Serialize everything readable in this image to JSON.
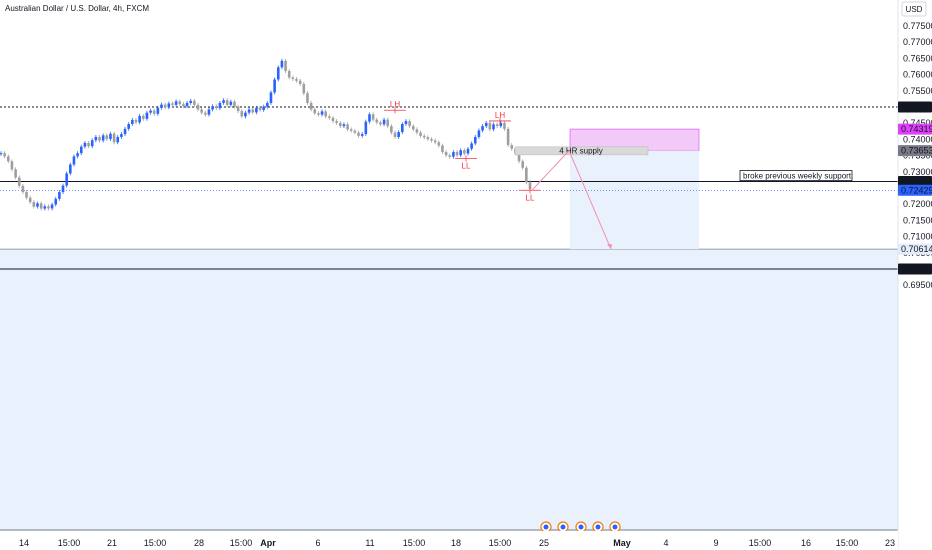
{
  "chart_data": {
    "type": "candlestick",
    "title": "Australian Dollar / U.S. Dollar, 4h, FXCM",
    "currency": "USD",
    "ylim": [
      0.694,
      0.779
    ],
    "y_ticks": [
      "0.77500",
      "0.77000",
      "0.76500",
      "0.76000",
      "0.75500",
      "0.75000",
      "0.74500",
      "0.74000",
      "0.73500",
      "0.73000",
      "0.72500",
      "0.72000",
      "0.71500",
      "0.71000",
      "0.70500",
      "0.70000",
      "0.69500"
    ],
    "x_ticks": [
      "14",
      "15:00",
      "21",
      "15:00",
      "28",
      "15:00",
      "Apr",
      "6",
      "11",
      "15:00",
      "18",
      "15:00",
      "25",
      "May",
      "4",
      "9",
      "15:00",
      "16",
      "15:00",
      "23"
    ],
    "bull_color": "#2962ff",
    "bear_color": "#9e9e9e",
    "path": [
      [
        0.7355,
        0.736
      ],
      [
        0.7345,
        0.735
      ],
      [
        0.733,
        0.7335
      ],
      [
        0.7305,
        0.731
      ],
      [
        0.728,
        0.7285
      ],
      [
        0.7255,
        0.7258
      ],
      [
        0.7235,
        0.724
      ],
      [
        0.7218,
        0.7222
      ],
      [
        0.7205,
        0.7208
      ],
      [
        0.719,
        0.7195
      ],
      [
        0.72,
        0.7205
      ],
      [
        0.7185,
        0.7188
      ],
      [
        0.7192,
        0.7195
      ],
      [
        0.7186,
        0.7188
      ],
      [
        0.7198,
        0.72
      ],
      [
        0.7215,
        0.7218
      ],
      [
        0.7235,
        0.724
      ],
      [
        0.7255,
        0.726
      ],
      [
        0.729,
        0.73
      ],
      [
        0.732,
        0.7325
      ],
      [
        0.7345,
        0.735
      ],
      [
        0.7355,
        0.736
      ],
      [
        0.7375,
        0.738
      ],
      [
        0.7388,
        0.739
      ],
      [
        0.7378,
        0.738
      ],
      [
        0.7395,
        0.74
      ],
      [
        0.7405,
        0.741
      ],
      [
        0.7395,
        0.7398
      ],
      [
        0.741,
        0.7415
      ],
      [
        0.74,
        0.7402
      ],
      [
        0.7415,
        0.742
      ],
      [
        0.739,
        0.7392
      ],
      [
        0.7405,
        0.741
      ],
      [
        0.7415,
        0.7418
      ],
      [
        0.743,
        0.7435
      ],
      [
        0.7445,
        0.745
      ],
      [
        0.7458,
        0.7462
      ],
      [
        0.745,
        0.7455
      ],
      [
        0.747,
        0.7475
      ],
      [
        0.7462,
        0.7465
      ],
      [
        0.748,
        0.7485
      ],
      [
        0.7488,
        0.749
      ],
      [
        0.7478,
        0.748
      ],
      [
        0.7495,
        0.75
      ],
      [
        0.7505,
        0.751
      ],
      [
        0.7498,
        0.75
      ],
      [
        0.751,
        0.7512
      ],
      [
        0.7505,
        0.7508
      ],
      [
        0.7515,
        0.752
      ],
      [
        0.7508,
        0.751
      ],
      [
        0.75,
        0.7505
      ],
      [
        0.751,
        0.7515
      ],
      [
        0.7518,
        0.752
      ],
      [
        0.7505,
        0.7508
      ],
      [
        0.749,
        0.7495
      ],
      [
        0.748,
        0.7485
      ],
      [
        0.7475,
        0.7478
      ],
      [
        0.749,
        0.7495
      ],
      [
        0.75,
        0.7505
      ],
      [
        0.7495,
        0.7498
      ],
      [
        0.751,
        0.7515
      ],
      [
        0.752,
        0.7522
      ],
      [
        0.7505,
        0.7508
      ],
      [
        0.7515,
        0.7518
      ],
      [
        0.75,
        0.7502
      ],
      [
        0.7485,
        0.749
      ],
      [
        0.747,
        0.7472
      ],
      [
        0.748,
        0.7485
      ],
      [
        0.749,
        0.7495
      ],
      [
        0.7482,
        0.7485
      ],
      [
        0.7495,
        0.75
      ],
      [
        0.749,
        0.7492
      ],
      [
        0.75,
        0.7502
      ],
      [
        0.751,
        0.7515
      ],
      [
        0.754,
        0.755
      ],
      [
        0.758,
        0.759
      ],
      [
        0.762,
        0.7625
      ],
      [
        0.764,
        0.7645
      ],
      [
        0.761,
        0.7612
      ],
      [
        0.759,
        0.7592
      ],
      [
        0.7585,
        0.7588
      ],
      [
        0.758,
        0.7582
      ],
      [
        0.757,
        0.7572
      ],
      [
        0.754,
        0.7545
      ],
      [
        0.751,
        0.7515
      ],
      [
        0.749,
        0.7495
      ],
      [
        0.748,
        0.7482
      ],
      [
        0.7475,
        0.7478
      ],
      [
        0.7485,
        0.7488
      ],
      [
        0.747,
        0.7472
      ],
      [
        0.7465,
        0.7468
      ],
      [
        0.7455,
        0.7458
      ],
      [
        0.745,
        0.7452
      ],
      [
        0.744,
        0.7442
      ],
      [
        0.7445,
        0.7448
      ],
      [
        0.743,
        0.7432
      ],
      [
        0.7425,
        0.7428
      ],
      [
        0.742,
        0.7422
      ],
      [
        0.741,
        0.7412
      ],
      [
        0.7415,
        0.7418
      ],
      [
        0.745,
        0.746
      ],
      [
        0.7475,
        0.748
      ],
      [
        0.746,
        0.7462
      ],
      [
        0.745,
        0.7455
      ],
      [
        0.7445,
        0.7448
      ],
      [
        0.746,
        0.7462
      ],
      [
        0.744,
        0.7442
      ],
      [
        0.742,
        0.7422
      ],
      [
        0.7405,
        0.741
      ],
      [
        0.742,
        0.7425
      ],
      [
        0.7445,
        0.745
      ],
      [
        0.7455,
        0.7458
      ],
      [
        0.744,
        0.7442
      ],
      [
        0.743,
        0.7432
      ],
      [
        0.742,
        0.7422
      ],
      [
        0.741,
        0.7412
      ],
      [
        0.7405,
        0.7408
      ],
      [
        0.74,
        0.7402
      ],
      [
        0.7395,
        0.7398
      ],
      [
        0.739,
        0.7392
      ],
      [
        0.738,
        0.7382
      ],
      [
        0.736,
        0.7362
      ],
      [
        0.735,
        0.7352
      ],
      [
        0.7345,
        0.7348
      ],
      [
        0.736,
        0.7362
      ],
      [
        0.735,
        0.7352
      ],
      [
        0.7365,
        0.7368
      ],
      [
        0.7355,
        0.7358
      ],
      [
        0.737,
        0.7372
      ],
      [
        0.7385,
        0.739
      ],
      [
        0.7405,
        0.741
      ],
      [
        0.7425,
        0.743
      ],
      [
        0.744,
        0.7442
      ],
      [
        0.745,
        0.7452
      ],
      [
        0.743,
        0.7432
      ],
      [
        0.7445,
        0.7448
      ],
      [
        0.744,
        0.7442
      ],
      [
        0.745,
        0.7452
      ],
      [
        0.743,
        0.7435
      ],
      [
        0.738,
        0.7385
      ],
      [
        0.737,
        0.7372
      ],
      [
        0.7355,
        0.7358
      ],
      [
        0.733,
        0.7335
      ],
      [
        0.731,
        0.7315
      ],
      [
        0.7265,
        0.727
      ],
      [
        0.7245,
        0.725
      ]
    ],
    "levels": [
      {
        "value": 0.75,
        "label": "0.75000",
        "style": "dotted",
        "color": "#131722"
      },
      {
        "value": 0.727,
        "label": "0.72700",
        "style": "solid",
        "color": "#131722"
      },
      {
        "value": 0.7,
        "label": "0.70000",
        "style": "solid",
        "color": "#131722"
      }
    ],
    "price_tags": [
      {
        "value": 0.75,
        "label": "0.75000",
        "bg": "#131722",
        "fg": "#ffffff",
        "name": "level-tag-075000"
      },
      {
        "value": 0.74319,
        "label": "0.74319",
        "bg": "#e040fb",
        "fg": "#ffffff",
        "name": "target-tag"
      },
      {
        "value": 0.73653,
        "label": "0.73653",
        "bg": "#787b86",
        "fg": "#ffffff",
        "name": "entry-tag"
      },
      {
        "value": 0.727,
        "label": "0.72700",
        "bg": "#131722",
        "fg": "#ffffff",
        "name": "level-tag-072700"
      },
      {
        "value": 0.72429,
        "label": "0.72429",
        "bg": "#2962ff",
        "fg": "#ffffff",
        "name": "last-price-tag"
      },
      {
        "value": 0.70614,
        "label": "0.70614",
        "bg": "#e3ecfa",
        "fg": "#131722",
        "name": "stop-tag"
      },
      {
        "value": 0.7,
        "label": "0.70000",
        "bg": "#131722",
        "fg": "#ffffff",
        "name": "level-tag-070000"
      }
    ],
    "last_price": 0.72429,
    "annotations": {
      "lh1": "LH",
      "lh2": "LH",
      "ll1": "LL",
      "ll2": "LL",
      "supply_label": "4 HR supply",
      "weekly_note": "broke previous weekly support"
    },
    "position": {
      "entry": 0.73653,
      "target_top": 0.74319,
      "stop": 0.70614
    },
    "colors": {
      "profit_zone": "#f3c9f7",
      "risk_zone": "#e8f1fc",
      "demand_zone": "#e8f1fc",
      "supply_zone": "#d9d9d9",
      "structure": "#f23645",
      "projection": "#f48fb1"
    }
  }
}
